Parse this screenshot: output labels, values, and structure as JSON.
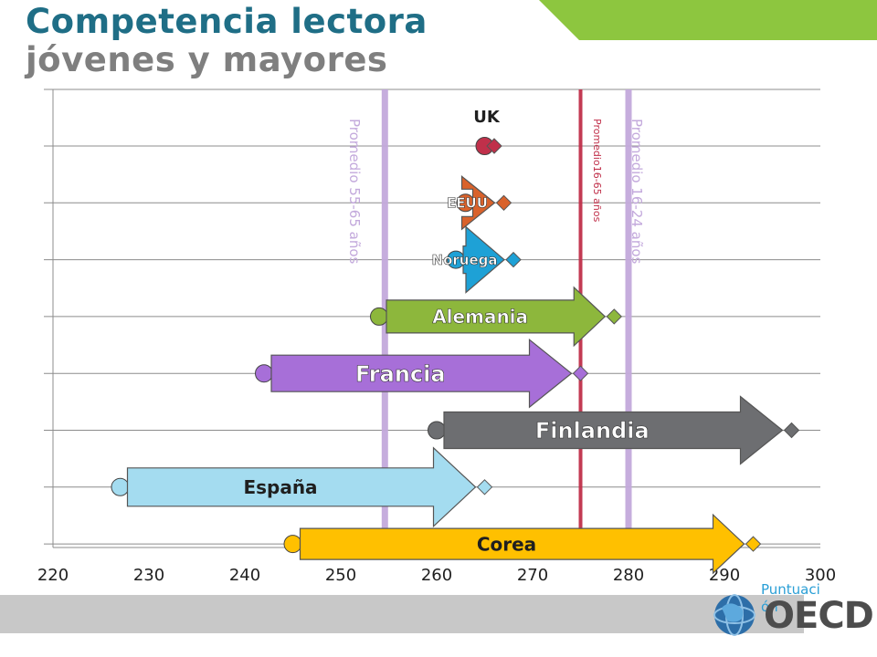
{
  "header": {
    "title_line1": "Competencia lectora",
    "title_line2": "jóvenes y mayores",
    "accent_color": "#8dc63f"
  },
  "footer": {
    "axis_unit": "Puntuación",
    "logo_text": "OECD"
  },
  "chart_data": {
    "type": "dumbbell-arrow",
    "xlim": [
      220,
      300
    ],
    "x_ticks": [
      220,
      230,
      240,
      250,
      260,
      270,
      280,
      290,
      300
    ],
    "grid": true,
    "legend_position": "none",
    "markers": {
      "start": "circle (55-65 años)",
      "end": "diamond (16-24 años)"
    },
    "series": [
      {
        "name": "UK",
        "start": 265,
        "end": 266,
        "color": "#c0304a",
        "arrow": false
      },
      {
        "name": "EEUU",
        "start": 263,
        "end": 267,
        "color": "#d9622b",
        "arrow": true
      },
      {
        "name": "Noruega",
        "start": 262,
        "end": 268,
        "color": "#1ea1d6",
        "arrow": true
      },
      {
        "name": "Alemania",
        "start": 254,
        "end": 278.5,
        "color": "#8db73c",
        "arrow": true
      },
      {
        "name": "Francia",
        "start": 242,
        "end": 275,
        "color": "#a76fd8",
        "arrow": true
      },
      {
        "name": "Finlandia",
        "start": 260,
        "end": 297,
        "color": "#6d6e71",
        "arrow": true
      },
      {
        "name": "España",
        "start": 227,
        "end": 265,
        "color": "#a4dcf0",
        "arrow": true
      },
      {
        "name": "Corea",
        "start": 245,
        "end": 293,
        "color": "#ffc000",
        "arrow": true
      }
    ],
    "reference_lines": [
      {
        "label": "Promedio  55-65 años",
        "x": 254.6,
        "color": "#c3a9dc"
      },
      {
        "label": "Promedio16-65  años",
        "x": 275,
        "color": "#c0304a"
      },
      {
        "label": "Promedio 16-24 años",
        "x": 280,
        "color": "#c3a9dc"
      }
    ]
  }
}
